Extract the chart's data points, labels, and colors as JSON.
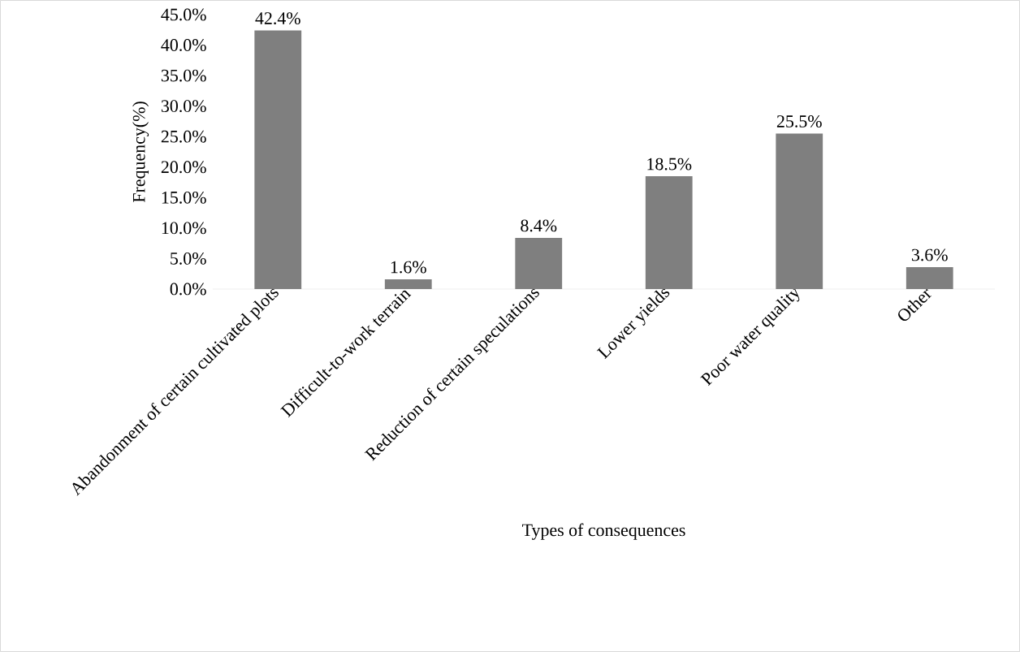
{
  "chart_data": {
    "type": "bar",
    "xlabel": "Types of consequences",
    "ylabel": "Frequency(%)",
    "categories": [
      "Abandonment of certain cultivated plots",
      "Difficult-to-work terrain",
      "Reduction of certain speculations",
      "Lower yields",
      "Poor water quality",
      "Other"
    ],
    "values": [
      42.4,
      1.6,
      8.4,
      18.5,
      25.5,
      3.6
    ],
    "value_labels": [
      "42.4%",
      "1.6%",
      "8.4%",
      "18.5%",
      "25.5%",
      "3.6%"
    ],
    "color": "#7f7f7f",
    "ylim": [
      0,
      45
    ],
    "yticks": [
      {
        "value": 0,
        "label": "0.0%"
      },
      {
        "value": 5,
        "label": "5.0%"
      },
      {
        "value": 10,
        "label": "10.0%"
      },
      {
        "value": 15,
        "label": "15.0%"
      },
      {
        "value": 20,
        "label": "20.0%"
      },
      {
        "value": 25,
        "label": "25.0%"
      },
      {
        "value": 30,
        "label": "30.0%"
      },
      {
        "value": 35,
        "label": "35.0%"
      },
      {
        "value": 40,
        "label": "40.0%"
      },
      {
        "value": 45,
        "label": "45.0%"
      }
    ],
    "grid": false
  }
}
